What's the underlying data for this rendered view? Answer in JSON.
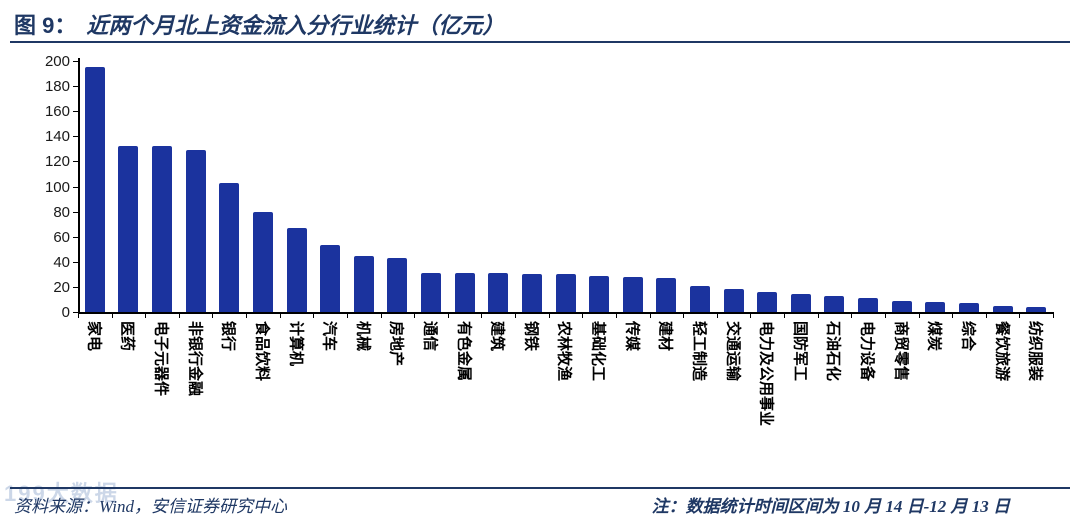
{
  "header": {
    "figure_label": "图 9：",
    "title": "近两个月北上资金流入分行业统计（亿元）"
  },
  "chart_data": {
    "type": "bar",
    "title": "近两个月北上资金流入分行业统计（亿元）",
    "xlabel": "",
    "ylabel": "",
    "ylim": [
      0,
      200
    ],
    "ytick_step": 20,
    "grid": false,
    "legend_position": "none",
    "categories": [
      "家电",
      "医药",
      "电子元器件",
      "非银行金融",
      "银行",
      "食品饮料",
      "计算机",
      "汽车",
      "机械",
      "房地产",
      "通信",
      "有色金属",
      "建筑",
      "钢铁",
      "农林牧渔",
      "基础化工",
      "传媒",
      "建材",
      "轻工制造",
      "交通运输",
      "电力及公用事业",
      "国防军工",
      "石油石化",
      "电力设备",
      "商贸零售",
      "煤炭",
      "综合",
      "餐饮旅游",
      "纺织服装"
    ],
    "values": [
      195,
      132,
      132,
      129,
      103,
      80,
      67,
      53,
      45,
      43,
      31,
      31,
      31,
      30,
      30,
      29,
      28,
      27,
      21,
      18,
      16,
      14,
      13,
      11,
      9,
      8,
      7,
      5,
      4
    ]
  },
  "footer": {
    "source": "资料来源：Wind，安信证券研究中心",
    "note": "注：数据统计时间区间为 10 月 14 日-12 月 13 日",
    "watermark": "199大数据"
  },
  "colors": {
    "bar": "#1B339E",
    "accent": "#1F3864",
    "axis": "#000000"
  }
}
